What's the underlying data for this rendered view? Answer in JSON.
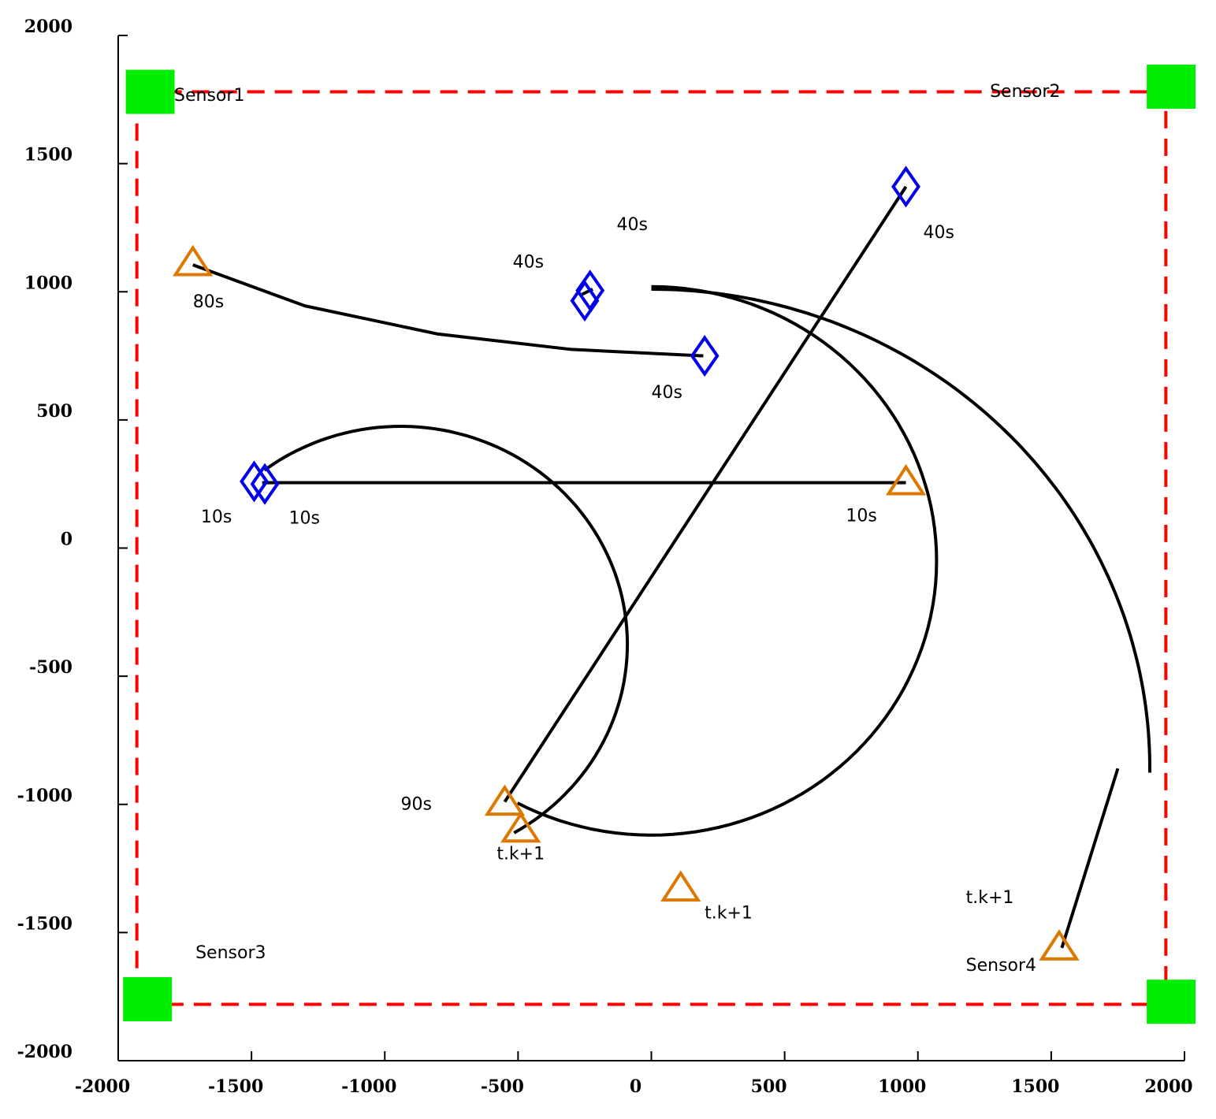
{
  "chart_data": {
    "type": "scatter",
    "title": "",
    "xlabel": "",
    "ylabel": "",
    "xlim": [
      -2000,
      2000
    ],
    "ylim": [
      -2000,
      2000
    ],
    "x_ticks": [
      -2000,
      -1500,
      -1000,
      -500,
      0,
      500,
      1000,
      1500,
      2000
    ],
    "y_ticks": [
      -2000,
      -1500,
      -1000,
      -500,
      0,
      500,
      1000,
      1500,
      2000
    ],
    "grid": false,
    "colors": {
      "boundary": "#ff0000",
      "sensor": "#00ee00",
      "start_marker": "#dd7700",
      "end_marker": "#0000ee",
      "track": "#000000"
    },
    "boundary": {
      "x0": -1930,
      "x1": 1930,
      "y0": -1780,
      "y1": 1780
    },
    "sensors": [
      {
        "x": -1880,
        "y": 1780,
        "label": "Sensor1"
      },
      {
        "x": 1950,
        "y": 1800,
        "label": "Sensor2"
      },
      {
        "x": -1890,
        "y": -1760,
        "label": "Sensor3"
      },
      {
        "x": 1950,
        "y": -1770,
        "label": "Sensor4"
      }
    ],
    "tracks": [
      {
        "kind": "line",
        "points": [
          [
            -1720,
            1105
          ],
          [
            -1300,
            945
          ],
          [
            -800,
            835
          ],
          [
            -300,
            775
          ],
          [
            195,
            750
          ]
        ]
      },
      {
        "kind": "line",
        "points": [
          [
            -1460,
            255
          ],
          [
            955,
            255
          ]
        ]
      },
      {
        "kind": "line",
        "points": [
          [
            -550,
            -990
          ],
          [
            955,
            1410
          ]
        ]
      },
      {
        "kind": "arc",
        "center": [
          -940,
          -375
        ],
        "radius": 850,
        "from_deg": 127,
        "to_deg": -60
      },
      {
        "kind": "arc",
        "center": [
          0,
          -50
        ],
        "radius": 1070,
        "from_deg": 90,
        "to_deg": -118
      },
      {
        "kind": "arc",
        "center": [
          0,
          -860
        ],
        "radius": 1870,
        "from_deg": 90,
        "to_deg": -0.5
      },
      {
        "kind": "line",
        "points": [
          [
            -260,
            990
          ],
          [
            -220,
            1010
          ]
        ]
      },
      {
        "kind": "line",
        "points": [
          [
            1750,
            -860
          ],
          [
            1540,
            -1560
          ]
        ]
      }
    ],
    "start_points": [
      [
        -1720,
        1110
      ],
      [
        955,
        255
      ],
      [
        -550,
        -995
      ],
      [
        -490,
        -1100
      ],
      [
        110,
        -1330
      ],
      [
        1530,
        -1560
      ]
    ],
    "end_points": [
      [
        -1490,
        260
      ],
      [
        -1450,
        250
      ],
      [
        -230,
        1005
      ],
      [
        -250,
        965
      ],
      [
        200,
        750
      ],
      [
        955,
        1410
      ]
    ],
    "annotations": [
      {
        "text": "80s",
        "x": -1720,
        "y": 940
      },
      {
        "text": "40s",
        "x": -130,
        "y": 1240
      },
      {
        "text": "40s",
        "x": -520,
        "y": 1095
      },
      {
        "text": "40s",
        "x": 1020,
        "y": 1210
      },
      {
        "text": "40s",
        "x": 0,
        "y": 585
      },
      {
        "text": "10s",
        "x": -1690,
        "y": 100
      },
      {
        "text": "10s",
        "x": -1360,
        "y": 95
      },
      {
        "text": "10s",
        "x": 730,
        "y": 105
      },
      {
        "text": "90s",
        "x": -940,
        "y": -1020
      },
      {
        "text": "t.k+1",
        "x": -580,
        "y": -1215
      },
      {
        "text": "t.k+1",
        "x": 200,
        "y": -1445
      },
      {
        "text": "t.k+1",
        "x": 1180,
        "y": -1385
      },
      {
        "text": "Sensor1",
        "x": -1790,
        "y": 1745
      },
      {
        "text": "Sensor2",
        "x": 1270,
        "y": 1760
      },
      {
        "text": "Sensor3",
        "x": -1710,
        "y": -1600
      },
      {
        "text": "Sensor4",
        "x": 1180,
        "y": -1650
      }
    ]
  }
}
